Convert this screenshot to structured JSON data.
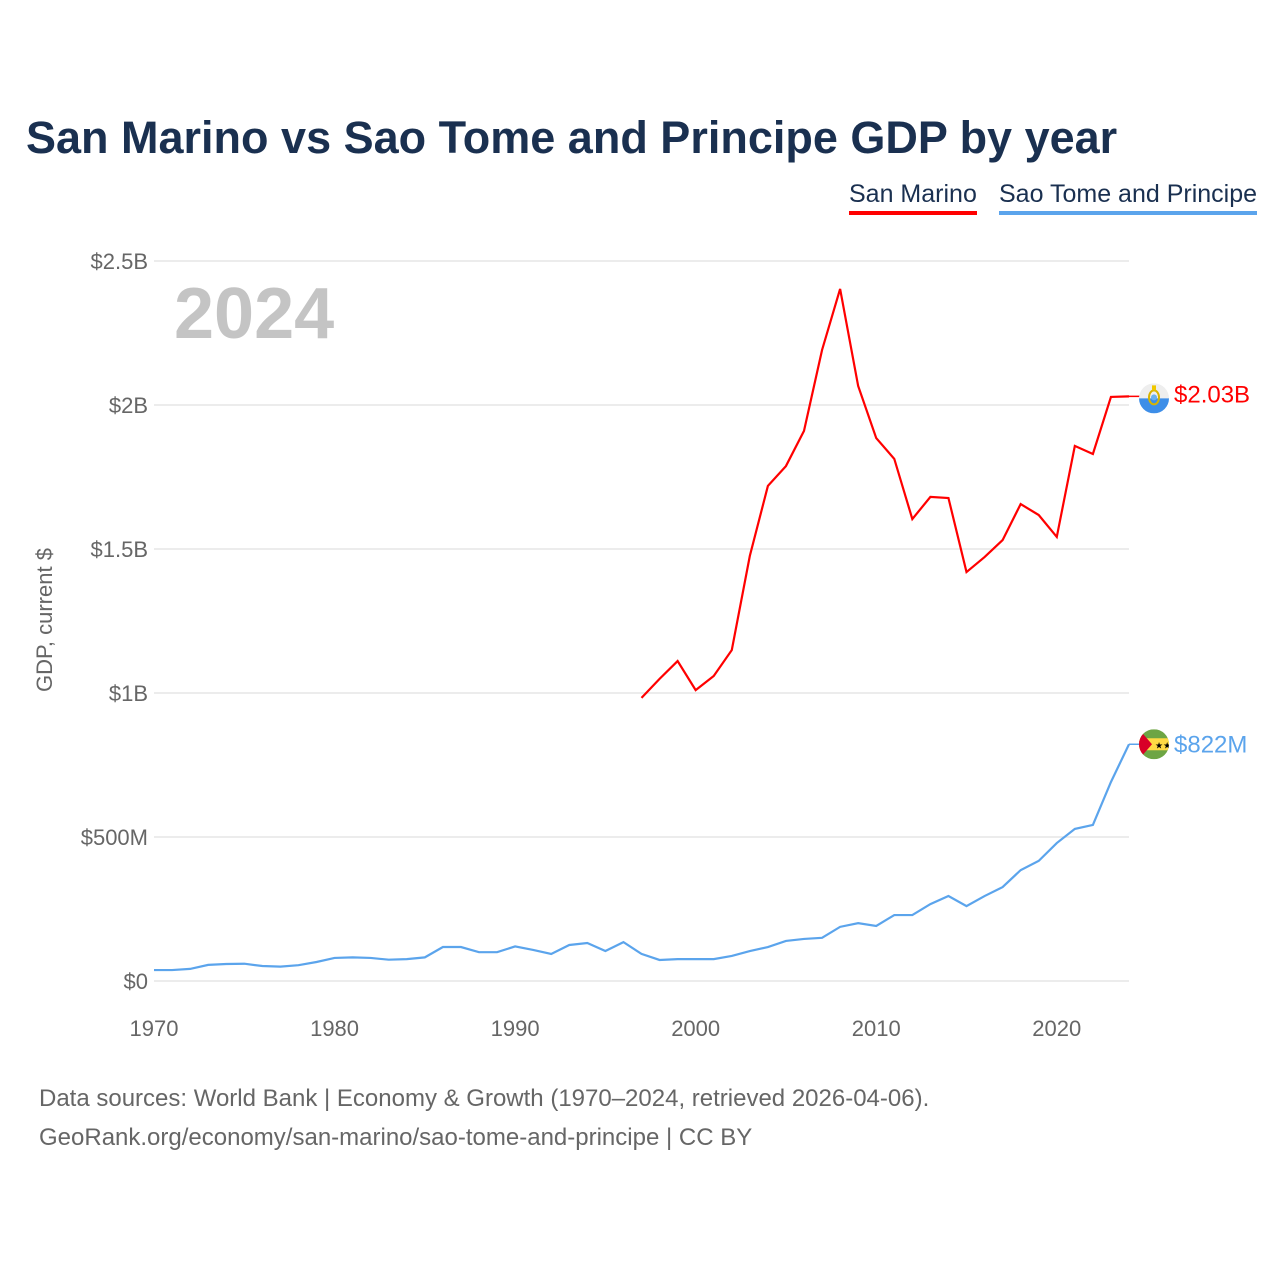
{
  "title": "San Marino vs Sao Tome and Principe GDP by year",
  "legend": [
    "San Marino",
    "Sao Tome and Principe"
  ],
  "footer": {
    "line1": "Data sources: World Bank | Economy & Growth (1970–2024, retrieved 2026-04-06).",
    "line2": "GeoRank.org/economy/san-marino/sao-tome-and-principe | CC BY"
  },
  "chart_data": {
    "type": "line",
    "title": "San Marino vs Sao Tome and Principe GDP by year",
    "year_label": "2024",
    "xlabel": "",
    "ylabel": "GDP, current $",
    "xlim": [
      1970,
      2024
    ],
    "ylim": [
      0,
      2.5
    ],
    "yunit": "billion USD",
    "xticks": [
      1970,
      1980,
      1990,
      2000,
      2010,
      2020
    ],
    "yticks": [
      0,
      0.5,
      1,
      1.5,
      2,
      2.5
    ],
    "ytick_labels": [
      "$0",
      "$500M",
      "$1B",
      "$1.5B",
      "$2B",
      "$2.5B"
    ],
    "grid": true,
    "legend_position": "top-right",
    "series": [
      {
        "name": "San Marino",
        "color": "#ff0000",
        "end_label": "$2.03B",
        "flag": "san-marino-flag",
        "x": [
          1997,
          1998,
          1999,
          2000,
          2001,
          2002,
          2003,
          2004,
          2005,
          2006,
          2007,
          2008,
          2009,
          2010,
          2011,
          2012,
          2013,
          2014,
          2015,
          2016,
          2017,
          2018,
          2019,
          2020,
          2021,
          2022,
          2023,
          2024
        ],
        "values": [
          0.983,
          1.049,
          1.111,
          1.01,
          1.059,
          1.149,
          1.476,
          1.719,
          1.788,
          1.91,
          2.191,
          2.403,
          2.066,
          1.885,
          1.813,
          1.604,
          1.681,
          1.677,
          1.42,
          1.472,
          1.531,
          1.656,
          1.618,
          1.542,
          1.858,
          1.83,
          2.028,
          2.03
        ]
      },
      {
        "name": "Sao Tome and Principe",
        "color": "#5ba4ec",
        "end_label": "$822M",
        "flag": "sao-tome-flag",
        "x": [
          1970,
          1971,
          1972,
          1973,
          1974,
          1975,
          1976,
          1977,
          1978,
          1979,
          1980,
          1981,
          1982,
          1983,
          1984,
          1985,
          1986,
          1987,
          1988,
          1989,
          1990,
          1991,
          1992,
          1993,
          1994,
          1995,
          1996,
          1997,
          1998,
          1999,
          2000,
          2001,
          2002,
          2003,
          2004,
          2005,
          2006,
          2007,
          2008,
          2009,
          2010,
          2011,
          2012,
          2013,
          2014,
          2015,
          2016,
          2017,
          2018,
          2019,
          2020,
          2021,
          2022,
          2023,
          2024
        ],
        "values": [
          0.038,
          0.038,
          0.042,
          0.056,
          0.059,
          0.06,
          0.052,
          0.05,
          0.055,
          0.066,
          0.08,
          0.082,
          0.08,
          0.074,
          0.076,
          0.082,
          0.118,
          0.118,
          0.1,
          0.1,
          0.12,
          0.108,
          0.094,
          0.125,
          0.132,
          0.104,
          0.135,
          0.094,
          0.073,
          0.076,
          0.076,
          0.076,
          0.087,
          0.104,
          0.118,
          0.139,
          0.146,
          0.15,
          0.188,
          0.201,
          0.191,
          0.229,
          0.229,
          0.267,
          0.295,
          0.26,
          0.295,
          0.326,
          0.385,
          0.417,
          0.479,
          0.528,
          0.542,
          0.691,
          0.822
        ]
      }
    ]
  }
}
